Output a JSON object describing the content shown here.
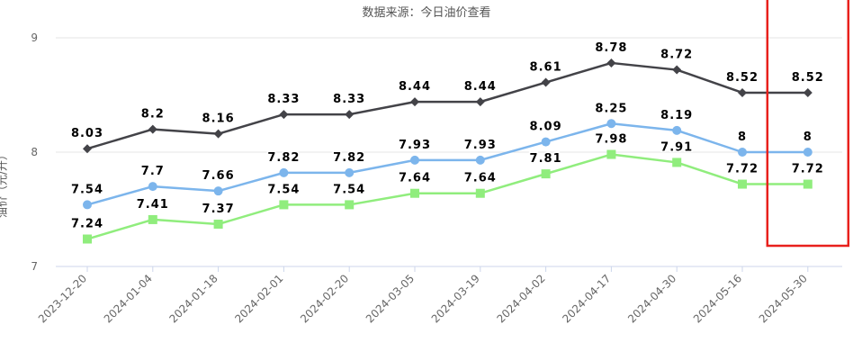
{
  "chart_data": {
    "type": "line",
    "title": "数据来源：今日油价查看",
    "ylabel": "油价（元/升）",
    "xlabel": "",
    "ylim": [
      7,
      9
    ],
    "yticks": [
      7,
      8,
      9
    ],
    "grid": true,
    "categories": [
      "2023-12-20",
      "2024-01-04",
      "2024-01-18",
      "2024-02-01",
      "2024-02-20",
      "2024-03-05",
      "2024-03-19",
      "2024-04-02",
      "2024-04-17",
      "2024-04-30",
      "2024-05-16",
      "2024-05-30"
    ],
    "series": [
      {
        "color": "#434348",
        "marker": "diamond",
        "values": [
          8.03,
          8.2,
          8.16,
          8.33,
          8.33,
          8.44,
          8.44,
          8.61,
          8.78,
          8.72,
          8.52,
          8.52
        ],
        "labels": [
          "8.03",
          "8.2",
          "8.16",
          "8.33",
          "8.33",
          "8.44",
          "8.44",
          "8.61",
          "8.78",
          "8.72",
          "8.52",
          "8.52"
        ]
      },
      {
        "color": "#7cb5ec",
        "marker": "circle",
        "values": [
          7.54,
          7.7,
          7.66,
          7.82,
          7.82,
          7.93,
          7.93,
          8.09,
          8.25,
          8.19,
          8.0,
          8.0
        ],
        "labels": [
          "7.54",
          "7.7",
          "7.66",
          "7.82",
          "7.82",
          "7.93",
          "7.93",
          "8.09",
          "8.25",
          "8.19",
          "8",
          "8"
        ]
      },
      {
        "color": "#90ed7d",
        "marker": "square",
        "values": [
          7.24,
          7.41,
          7.37,
          7.54,
          7.54,
          7.64,
          7.64,
          7.81,
          7.98,
          7.91,
          7.72,
          7.72
        ],
        "labels": [
          "7.24",
          "7.41",
          "7.37",
          "7.54",
          "7.54",
          "7.64",
          "7.64",
          "7.81",
          "7.98",
          "7.91",
          "7.72",
          "7.72"
        ]
      }
    ],
    "highlight": {
      "category": "2024-05-30",
      "color": "#e8201c"
    }
  }
}
